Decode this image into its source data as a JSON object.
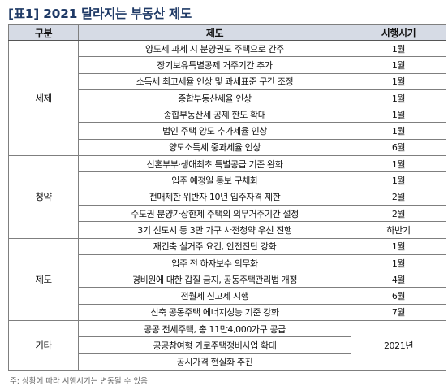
{
  "title": "[표1] 2021 달라지는 부동산 제도",
  "table": {
    "headers": [
      "구분",
      "제도",
      "시행시기"
    ],
    "groups": [
      {
        "category": "세제",
        "rows": [
          {
            "policy": "양도세 과세 시 분양권도 주택으로 간주",
            "timing": "1월"
          },
          {
            "policy": "장기보유특별공제 거주기간 추가",
            "timing": "1월"
          },
          {
            "policy": "소득세 최고세율 인상 및 과세표준 구간 조정",
            "timing": "1월"
          },
          {
            "policy": "종합부동산세율 인상",
            "timing": "1월"
          },
          {
            "policy": "종합부동산세 공제 한도 확대",
            "timing": "1월"
          },
          {
            "policy": "법인 주택 양도 추가세율 인상",
            "timing": "1월"
          },
          {
            "policy": "양도소득세 중과세율 인상",
            "timing": "6월"
          }
        ]
      },
      {
        "category": "청약",
        "rows": [
          {
            "policy": "신혼부부·생애최초 특별공급 기준 완화",
            "timing": "1월"
          },
          {
            "policy": "입주 예정일 통보 구체화",
            "timing": "1월"
          },
          {
            "policy": "전매제한 위반자 10년 입주자격 제한",
            "timing": "2월"
          },
          {
            "policy": "수도권 분양가상한제 주택의 의무거주기간 설정",
            "timing": "2월"
          },
          {
            "policy": "3기 신도시 등 3만 가구 사전청약 우선 진행",
            "timing": "하반기"
          }
        ]
      },
      {
        "category": "제도",
        "rows": [
          {
            "policy": "재건축 실거주 요건, 안전진단 강화",
            "timing": "1월"
          },
          {
            "policy": "입주 전 하자보수 의무화",
            "timing": "1월"
          },
          {
            "policy": "경비원에 대한 갑질 금지, 공동주택관리법 개정",
            "timing": "4월"
          },
          {
            "policy": "전월세 신고제 시행",
            "timing": "6월"
          },
          {
            "policy": "신축 공동주택 에너지성능 기준 강화",
            "timing": "7월"
          }
        ]
      },
      {
        "category": "기타",
        "timing": "2021년",
        "rows": [
          {
            "policy": "공공 전세주택, 총 11만4,000가구 공급"
          },
          {
            "policy": "공공참여형 가로주택정비사업 확대"
          },
          {
            "policy": "공시가격 현실화 추진"
          }
        ]
      }
    ]
  },
  "note": "주: 상황에 따라 시행시기는 변동될 수 있음"
}
